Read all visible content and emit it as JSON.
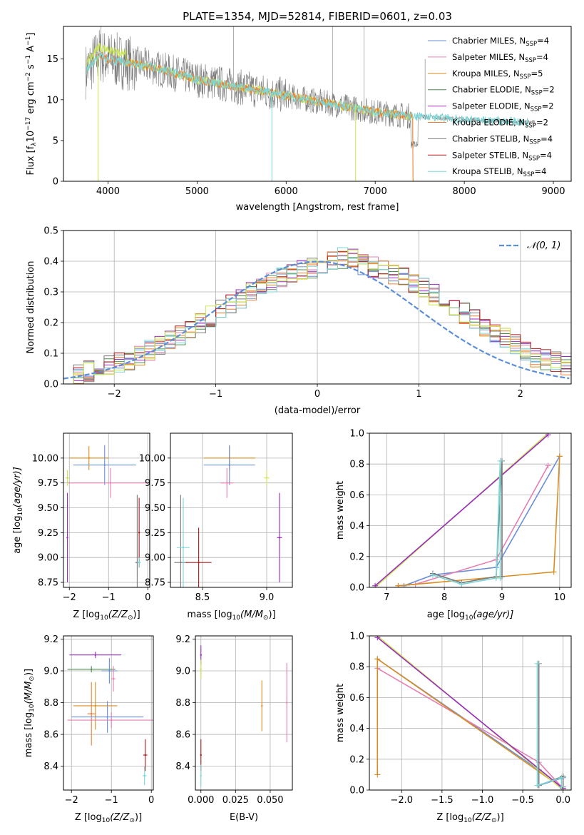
{
  "title": "PLATE=1354, MJD=52814, FIBERID=0601, z=0.03",
  "colors": {
    "c_miles": "#6a8fd8",
    "s_miles": "#e57fb1",
    "k_miles": "#d98d1e",
    "c_elodie": "#4f8e4f",
    "s_elodie": "#9b2bc4",
    "k_elodie": "#ef7d34",
    "c_stelib": "#7a7a7a",
    "s_stelib": "#b21a1a",
    "k_stelib": "#7dd6d6",
    "lime": "#c8e650",
    "gauss": "#5b8ed6"
  },
  "labels": {
    "spec_xlabel": "wavelength [Angstrom, rest frame]",
    "spec_ylabel": "Flux [f",
    "spec_ylabel_sub": "λ",
    "spec_ylabel_tail": "10",
    "spec_ylabel_exp": "−17",
    "spec_ylabel_unit": " erg cm",
    "spec_ylabel_e2": "−2",
    "spec_ylabel_s": " s",
    "spec_ylabel_e1": "−1",
    "spec_ylabel_a": " A",
    "spec_ylabel_e3": "−1",
    "spec_ylabel_close": "]",
    "hist_xlabel": "(data-model)/error",
    "hist_ylabel": "Normed distribution",
    "gauss_label": "𝒩(0, 1)",
    "age_ylabel": "age  [log",
    "log_sub": "10",
    "age_ylabel_tail": "(age/yr)]",
    "z_xlabel": "Z [log",
    "z_xlabel_tail": "(Z/Z",
    "sun_sub": "⊙",
    "z_xlabel_close": ")]",
    "mass_xlabel": "mass [log",
    "mass_xlabel_tail": "(M/M",
    "mass_xlabel_close": ")]",
    "mw_ylabel": "mass weight",
    "agew_xlabel": "age  [log",
    "agew_xlabel_tail": "(age/yr)]",
    "ebv_xlabel": "E(B-V)",
    "mass_ylabel": "mass [log",
    "mass_ylabel_tail": "(M/M",
    "mass_ylabel_close": ")]"
  },
  "legend": [
    {
      "name": "Chabrier MILES, N",
      "n": "4",
      "color": "c_miles"
    },
    {
      "name": "Salpeter MILES, N",
      "n": "4",
      "color": "s_miles"
    },
    {
      "name": "Kroupa MILES, N",
      "n": "5",
      "color": "k_miles"
    },
    {
      "name": "Chabrier ELODIE, N",
      "n": "2",
      "color": "c_elodie"
    },
    {
      "name": "Salpeter ELODIE, N",
      "n": "2",
      "color": "s_elodie"
    },
    {
      "name": "Kroupa ELODIE, N",
      "n": "2",
      "color": "k_elodie"
    },
    {
      "name": "Chabrier STELIB, N",
      "n": "4",
      "color": "c_stelib"
    },
    {
      "name": "Salpeter STELIB, N",
      "n": "4",
      "color": "s_stelib"
    },
    {
      "name": "Kroupa STELIB, N",
      "n": "4",
      "color": "k_stelib"
    }
  ],
  "legend_sub": "SSP",
  "chart_data": [
    {
      "type": "line",
      "xlim": [
        3500,
        9200
      ],
      "ylim": [
        0,
        19
      ],
      "xticks": [
        "4000",
        "5000",
        "6000",
        "7000",
        "8000",
        "9000"
      ],
      "yticks": [
        "0",
        "5",
        "10",
        "15"
      ],
      "data_points": [
        [
          3750,
          13.5
        ],
        [
          3900,
          15.5
        ],
        [
          4000,
          15.0
        ],
        [
          4500,
          14.0
        ],
        [
          5000,
          12.5
        ],
        [
          5500,
          11.5
        ],
        [
          6000,
          10.5
        ],
        [
          6500,
          9.5
        ],
        [
          7000,
          8.5
        ],
        [
          7400,
          8.0
        ],
        [
          8000,
          7.6
        ],
        [
          8800,
          7.2
        ]
      ],
      "model_end_wavelength": 7420
    },
    {
      "type": "bar",
      "xlim": [
        -2.5,
        2.5
      ],
      "ylim": [
        0,
        0.5
      ],
      "xticks": [
        "−2",
        "−1",
        "0",
        "1",
        "2"
      ],
      "yticks": [
        "0.0",
        "0.1",
        "0.2",
        "0.3",
        "0.4",
        "0.5"
      ],
      "bin_width": 0.1,
      "base_series": [
        0.02,
        0.03,
        0.04,
        0.05,
        0.06,
        0.07,
        0.08,
        0.09,
        0.11,
        0.12,
        0.14,
        0.16,
        0.18,
        0.2,
        0.22,
        0.24,
        0.26,
        0.28,
        0.3,
        0.31,
        0.33,
        0.35,
        0.36,
        0.37,
        0.38,
        0.39,
        0.4,
        0.41,
        0.41,
        0.39,
        0.38,
        0.37,
        0.36,
        0.35,
        0.33,
        0.31,
        0.29,
        0.27,
        0.25,
        0.23,
        0.21,
        0.19,
        0.17,
        0.15,
        0.13,
        0.11,
        0.09,
        0.08,
        0.07,
        0.06
      ],
      "gaussian": {
        "mean": 0,
        "sigma": 1,
        "name": "𝒩(0, 1)"
      }
    },
    {
      "type": "scatter",
      "xlim": [
        -2.15,
        0.05
      ],
      "ylim": [
        8.7,
        10.25
      ],
      "xticks": [
        "−2",
        "−1",
        "0"
      ],
      "yticks": [
        "8.75",
        "9.00",
        "9.25",
        "9.50",
        "9.75",
        "10.00"
      ],
      "points": [
        {
          "color": "k_miles",
          "x": -1.5,
          "y": 10.0,
          "xerr": 0.5,
          "yerr": 0.12
        },
        {
          "color": "c_miles",
          "x": -1.1,
          "y": 9.93,
          "xerr": 0.8,
          "yerr": 0.2
        },
        {
          "color": "s_miles",
          "x": -0.95,
          "y": 9.75,
          "xerr": 1.1,
          "yerr": 0.15
        },
        {
          "color": "lime",
          "x": -2.05,
          "y": 9.8,
          "xerr": 0.05,
          "yerr": 0.08
        },
        {
          "color": "s_elodie",
          "x": -2.05,
          "y": 9.2,
          "xerr": 0.02,
          "yerr": 0.45
        },
        {
          "color": "c_stelib",
          "x": -0.27,
          "y": 8.95,
          "xerr": 0.05,
          "yerr": 0.68
        },
        {
          "color": "s_stelib",
          "x": -0.22,
          "y": 9.25,
          "xerr": 0.02,
          "yerr": 0.35
        },
        {
          "color": "k_stelib",
          "x": -0.22,
          "y": 8.95,
          "xerr": 0.05,
          "yerr": 0.05
        }
      ]
    },
    {
      "type": "scatter",
      "xlim": [
        8.25,
        9.2
      ],
      "ylim": [
        8.7,
        10.25
      ],
      "xticks": [
        "8.5",
        "9.0"
      ],
      "yticks": [
        "8.75",
        "9.00",
        "9.25",
        "9.50",
        "9.75",
        "10.00"
      ],
      "points": [
        {
          "color": "k_miles",
          "x": 8.71,
          "y": 10.0,
          "xerr": 0.2,
          "yerr": 0.12
        },
        {
          "color": "c_miles",
          "x": 8.71,
          "y": 9.93,
          "xerr": 0.2,
          "yerr": 0.2
        },
        {
          "color": "s_miles",
          "x": 8.69,
          "y": 9.75,
          "xerr": 0.05,
          "yerr": 0.15
        },
        {
          "color": "lime",
          "x": 9.0,
          "y": 9.8,
          "xerr": 0.02,
          "yerr": 0.08
        },
        {
          "color": "s_elodie",
          "x": 9.1,
          "y": 9.2,
          "xerr": 0.02,
          "yerr": 0.45
        },
        {
          "color": "c_stelib",
          "x": 8.33,
          "y": 8.95,
          "xerr": 0.05,
          "yerr": 0.68
        },
        {
          "color": "s_stelib",
          "x": 8.47,
          "y": 8.95,
          "xerr": 0.1,
          "yerr": 0.35
        },
        {
          "color": "k_stelib",
          "x": 8.35,
          "y": 9.1,
          "xerr": 0.05,
          "yerr": 0.5
        }
      ]
    },
    {
      "type": "line",
      "xlim": [
        6.7,
        10.2
      ],
      "ylim": [
        0,
        1
      ],
      "xticks": [
        "7",
        "8",
        "9",
        "10"
      ],
      "yticks": [
        "0.0",
        "0.2",
        "0.4",
        "0.6",
        "0.8",
        "1.0"
      ],
      "series": [
        {
          "color": "c_miles",
          "x": [
            7.3,
            7.8,
            8.9,
            10.0
          ],
          "y": [
            0.01,
            0.08,
            0.13,
            0.85
          ]
        },
        {
          "color": "s_miles",
          "x": [
            7.2,
            7.5,
            8.9,
            9.8
          ],
          "y": [
            0.01,
            0.02,
            0.18,
            0.79
          ]
        },
        {
          "color": "k_miles",
          "x": [
            7.2,
            9.9,
            10.0
          ],
          "y": [
            0.01,
            0.1,
            0.85
          ]
        },
        {
          "color": "lime",
          "x": [
            6.8,
            9.8
          ],
          "y": [
            0.0,
            1.0
          ]
        },
        {
          "color": "s_elodie",
          "x": [
            6.8,
            9.8
          ],
          "y": [
            0.01,
            0.99
          ]
        },
        {
          "color": "c_stelib",
          "x": [
            7.8,
            8.3,
            8.9,
            9.0,
            9.0
          ],
          "y": [
            0.09,
            0.03,
            0.07,
            0.82,
            0.07
          ]
        },
        {
          "color": "k_stelib",
          "x": [
            7.8,
            8.3,
            8.9,
            8.97,
            8.97
          ],
          "y": [
            0.08,
            0.02,
            0.06,
            0.82,
            0.06
          ]
        }
      ]
    },
    {
      "type": "scatter",
      "xlim": [
        -2.2,
        0.05
      ],
      "ylim": [
        8.25,
        9.22
      ],
      "xticks": [
        "−2",
        "−1",
        "0"
      ],
      "yticks": [
        "8.4",
        "8.6",
        "8.8",
        "9.0",
        "9.2"
      ],
      "points": [
        {
          "color": "s_elodie",
          "x": -1.4,
          "y": 9.1,
          "xerr": 0.65,
          "yerr": 0.02
        },
        {
          "color": "c_elodie",
          "x": -1.5,
          "y": 9.01,
          "xerr": 0.6,
          "yerr": 0.02
        },
        {
          "color": "c_miles",
          "x": -1.05,
          "y": 9.0,
          "xerr": 0.2,
          "yerr": 0.08
        },
        {
          "color": "s_miles",
          "x": -0.95,
          "y": 8.95,
          "xerr": 0.05,
          "yerr": 0.08
        },
        {
          "color": "k_miles",
          "x": -1.4,
          "y": 8.78,
          "xerr": 0.55,
          "yerr": 0.15
        },
        {
          "color": "k_elodie",
          "x": -1.5,
          "y": 8.73,
          "xerr": 0.1,
          "yerr": 0.2
        },
        {
          "color": "c_miles",
          "x": -1.1,
          "y": 8.71,
          "xerr": 0.9,
          "yerr": 0.1
        },
        {
          "color": "s_miles",
          "x": -1.0,
          "y": 8.69,
          "xerr": 1.1,
          "yerr": 0.05
        },
        {
          "color": "s_stelib",
          "x": -0.15,
          "y": 8.47,
          "xerr": 0.05,
          "yerr": 0.1
        },
        {
          "color": "k_stelib",
          "x": -0.17,
          "y": 8.34,
          "xerr": 0.05,
          "yerr": 0.06
        }
      ]
    },
    {
      "type": "scatter",
      "xlim": [
        -0.004,
        0.066
      ],
      "ylim": [
        8.25,
        9.22
      ],
      "xticks": [
        "0.000",
        "0.025",
        "0.050"
      ],
      "yticks": [
        "8.4",
        "8.6",
        "8.8",
        "9.0",
        "9.2"
      ],
      "points": [
        {
          "color": "s_elodie",
          "x": 0.0,
          "y": 9.1,
          "xerr": 0.0,
          "yerr": 0.06
        },
        {
          "color": "lime",
          "x": 0.0,
          "y": 9.01,
          "xerr": 0.0,
          "yerr": 0.06
        },
        {
          "color": "k_miles",
          "x": 0.044,
          "y": 8.78,
          "xerr": 0.0,
          "yerr": 0.16
        },
        {
          "color": "s_miles",
          "x": 0.062,
          "y": 8.8,
          "xerr": 0.0,
          "yerr": 0.25
        },
        {
          "color": "s_stelib",
          "x": 0.0,
          "y": 8.47,
          "xerr": 0.0,
          "yerr": 0.1
        },
        {
          "color": "k_stelib",
          "x": 0.0,
          "y": 8.34,
          "xerr": 0.0,
          "yerr": 0.07
        }
      ]
    },
    {
      "type": "line",
      "xlim": [
        -2.4,
        0.1
      ],
      "ylim": [
        0,
        1
      ],
      "xticks": [
        "−2.0",
        "−1.5",
        "−1.0",
        "−0.5",
        "0.0"
      ],
      "yticks": [
        "0.0",
        "0.2",
        "0.4",
        "0.6",
        "0.8",
        "1.0"
      ],
      "series": [
        {
          "color": "c_miles",
          "x": [
            -2.3,
            -0.3,
            -0.3,
            0.0
          ],
          "y": [
            0.85,
            0.13,
            0.03,
            0.08
          ]
        },
        {
          "color": "s_miles",
          "x": [
            -2.3,
            -0.3,
            0.0
          ],
          "y": [
            0.79,
            0.18,
            0.01
          ]
        },
        {
          "color": "k_miles",
          "x": [
            -2.3,
            -2.3,
            0.0
          ],
          "y": [
            0.1,
            0.85,
            0.01
          ]
        },
        {
          "color": "lime",
          "x": [
            -2.3,
            0.0
          ],
          "y": [
            1.0,
            0.0
          ]
        },
        {
          "color": "s_elodie",
          "x": [
            -2.3,
            0.0
          ],
          "y": [
            0.99,
            0.01
          ]
        },
        {
          "color": "c_stelib",
          "x": [
            -0.3,
            -0.3,
            0.0,
            0.0
          ],
          "y": [
            0.82,
            0.03,
            0.09,
            0.02
          ]
        },
        {
          "color": "k_stelib",
          "x": [
            -0.32,
            -0.32,
            -0.02,
            -0.02
          ],
          "y": [
            0.82,
            0.03,
            0.08,
            0.02
          ]
        }
      ]
    }
  ]
}
